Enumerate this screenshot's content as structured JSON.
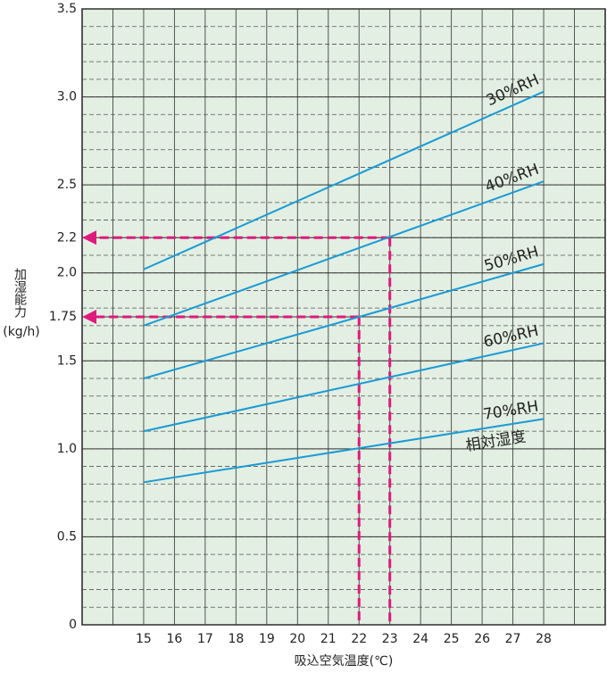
{
  "chart_data": {
    "type": "line",
    "y_label": "加湿能力",
    "y_unit": "(kg/h)",
    "x_label": "吸込空気温度(℃)",
    "annotation": "相対湿度",
    "x": [
      15,
      28
    ],
    "series": [
      {
        "name": "30%RH",
        "color": "#1a9ad6",
        "values": [
          2.02,
          3.03
        ]
      },
      {
        "name": "40%RH",
        "color": "#1a9ad6",
        "values": [
          1.7,
          2.52
        ]
      },
      {
        "name": "50%RH",
        "color": "#1a9ad6",
        "values": [
          1.4,
          2.05
        ]
      },
      {
        "name": "60%RH",
        "color": "#1a9ad6",
        "values": [
          1.1,
          1.6
        ]
      },
      {
        "name": "70%RH",
        "color": "#1a9ad6",
        "values": [
          0.81,
          1.17
        ]
      }
    ],
    "references": [
      {
        "x": 23,
        "y": 2.2
      },
      {
        "x": 22,
        "y": 1.75
      }
    ],
    "reference_color": "#e0197d",
    "background": "#e2efe2",
    "xlim": [
      13,
      30
    ],
    "ylim": [
      0,
      3.5
    ],
    "xticks": [
      15,
      16,
      17,
      18,
      19,
      20,
      21,
      22,
      23,
      24,
      25,
      26,
      27,
      28
    ],
    "yticks": [
      0,
      0.5,
      {
        "value": 1,
        "label": "1.0"
      },
      1.5,
      1.75,
      {
        "value": 2,
        "label": "2.0"
      },
      2.2,
      2.5,
      {
        "value": 3,
        "label": "3.0"
      },
      3.5
    ],
    "x_grid_step": 1,
    "minor_grid_step": 0.1,
    "grid": true
  }
}
